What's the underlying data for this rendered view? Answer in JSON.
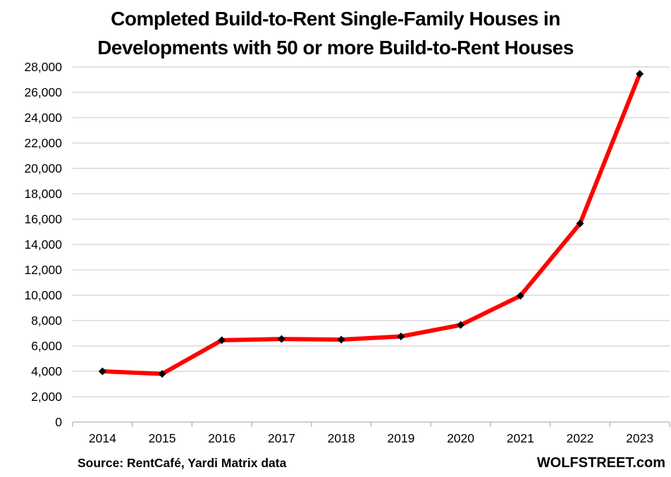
{
  "title_lines": [
    "Completed Build-to-Rent Single-Family Houses in",
    "Developments with 50 or more Build-to-Rent Houses"
  ],
  "footer": {
    "source": "Source: RentCafé, Yardi Matrix data",
    "brand": "WOLFSTREET.com"
  },
  "chart_data": {
    "type": "line",
    "title": "Completed Build-to-Rent Single-Family Houses in Developments with 50 or more Build-to-Rent Houses",
    "categories": [
      "2014",
      "2015",
      "2016",
      "2017",
      "2018",
      "2019",
      "2020",
      "2021",
      "2022",
      "2023"
    ],
    "series": [
      {
        "name": "Completed build-to-rent single-family houses",
        "values": [
          4000,
          3800,
          6450,
          6550,
          6500,
          6750,
          7650,
          9950,
          15650,
          27450
        ],
        "line_color": "#ff0000",
        "marker": "diamond",
        "marker_color": "#000000"
      }
    ],
    "xlabel": "",
    "ylabel": "",
    "ylim": [
      0,
      28000
    ],
    "ytick_step": 2000,
    "grid": true,
    "gridline_color": "#d9d9d9",
    "axis_color": "#bfbfbf",
    "legend_position": "none"
  }
}
